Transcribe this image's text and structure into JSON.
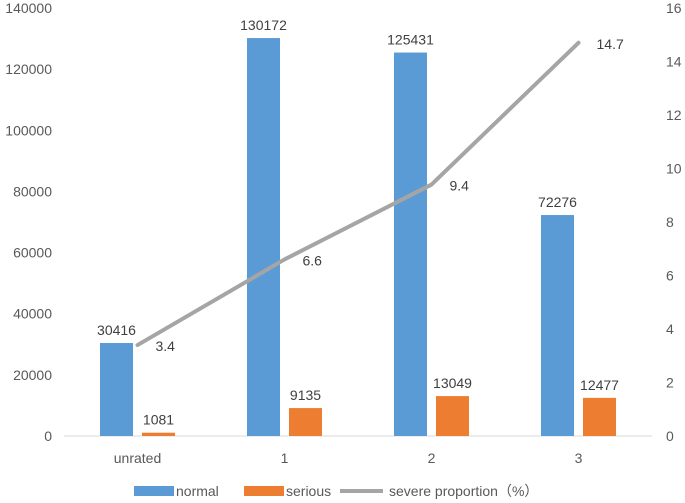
{
  "chart_data": {
    "type": "bar",
    "categories": [
      "unrated",
      "1",
      "2",
      "3"
    ],
    "series": [
      {
        "name": "normal",
        "kind": "bar",
        "axis": "left",
        "color": "#5B9BD5",
        "values": [
          30416,
          130172,
          125431,
          72276
        ],
        "labels": [
          "30416",
          "130172",
          "125431",
          "72276"
        ]
      },
      {
        "name": "serious",
        "kind": "bar",
        "axis": "left",
        "color": "#ED7D31",
        "values": [
          1081,
          9135,
          13049,
          12477
        ],
        "labels": [
          "1081",
          "9135",
          "13049",
          "12477"
        ]
      },
      {
        "name": "severe proportion（%）",
        "kind": "line",
        "axis": "right",
        "color": "#A5A5A5",
        "values": [
          3.4,
          6.6,
          9.4,
          14.7
        ],
        "labels": [
          "3.4",
          "6.6",
          "9.4",
          "14.7"
        ]
      }
    ],
    "y_left": {
      "min": 0,
      "max": 140000,
      "ticks": [
        "0",
        "20000",
        "40000",
        "60000",
        "80000",
        "100000",
        "120000",
        "140000"
      ]
    },
    "y_right": {
      "min": 0,
      "max": 16,
      "ticks": [
        "0",
        "2",
        "4",
        "6",
        "8",
        "10",
        "12",
        "14",
        "16"
      ]
    },
    "legend_position": "bottom",
    "grid": false,
    "title": "",
    "xlabel": "",
    "ylabel": ""
  }
}
